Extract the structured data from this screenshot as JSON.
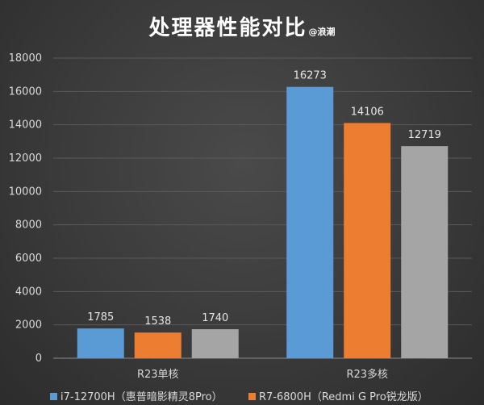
{
  "chart_data": {
    "type": "bar",
    "title": "处理器性能对比",
    "watermark": "@浪潮",
    "categories": [
      "R23单核",
      "R23多核"
    ],
    "series": [
      {
        "name": "i7-12700H（惠普暗影精灵8Pro）",
        "values": [
          1785,
          16273
        ],
        "color": "#5b9bd5"
      },
      {
        "name": "R7-6800H（Redmi G Pro锐龙版）",
        "values": [
          1538,
          14106
        ],
        "color": "#ed7d31"
      },
      {
        "name": "",
        "values": [
          1740,
          12719
        ],
        "color": "#a5a5a5"
      }
    ],
    "ylim": [
      0,
      18000
    ],
    "yticks": [
      0,
      2000,
      4000,
      6000,
      8000,
      10000,
      12000,
      14000,
      16000,
      18000
    ],
    "grid": true,
    "legend": "bottom"
  }
}
